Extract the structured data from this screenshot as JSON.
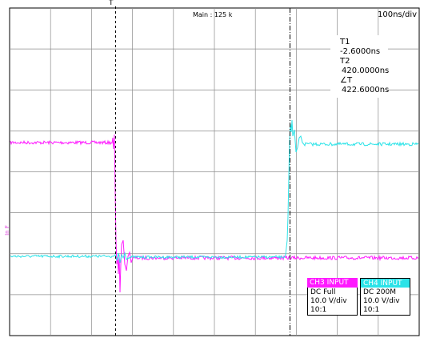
{
  "scope": {
    "main_label": "Main : 125 k",
    "timebase": "100ns/div",
    "trigger_marker": "T",
    "ref_marker": "In F",
    "cursors": {
      "t1_label": "T1",
      "t1_value": "-2.6000ns",
      "t2_label": "T2",
      "t2_value": "420.0000ns",
      "dt_label": "∠T",
      "dt_value": "422.6000ns"
    },
    "ch3": {
      "header": "CH3 INPUT",
      "coupling": "DC Full",
      "scale": "10.0 V/div",
      "probe": "10:1",
      "color": "#ff19ff"
    },
    "ch4": {
      "header": "CH4 INPUT",
      "coupling": "DC 200M",
      "scale": "10.0 V/div",
      "probe": "10:1",
      "color": "#2be3e8"
    }
  }
}
